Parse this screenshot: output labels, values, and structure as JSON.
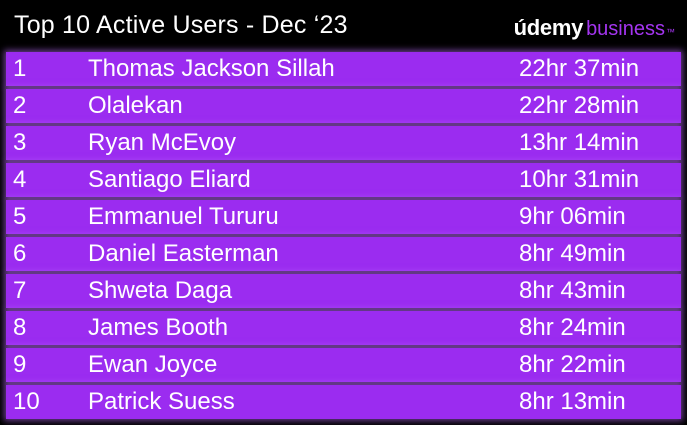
{
  "header": {
    "title": "Top 10 Active Users - Dec ‘23",
    "brand_logo": "údemy",
    "brand_suffix": "business",
    "brand_tm": "™"
  },
  "colors": {
    "background": "#000000",
    "row_fill": "#9b2cf0",
    "brand_accent": "#a435f0",
    "text": "#ffffff"
  },
  "rows": [
    {
      "rank": "1",
      "name": "Thomas Jackson Sillah",
      "time": "22hr 37min"
    },
    {
      "rank": "2",
      "name": "Olalekan",
      "time": "22hr 28min"
    },
    {
      "rank": "3",
      "name": "Ryan McEvoy",
      "time": "13hr 14min"
    },
    {
      "rank": "4",
      "name": "Santiago Eliard",
      "time": "10hr 31min"
    },
    {
      "rank": "5",
      "name": "Emmanuel Tururu",
      "time": "9hr 06min"
    },
    {
      "rank": "6",
      "name": "Daniel Easterman",
      "time": "8hr 49min"
    },
    {
      "rank": "7",
      "name": "Shweta Daga",
      "time": "8hr 43min"
    },
    {
      "rank": "8",
      "name": "James Booth",
      "time": "8hr 24min"
    },
    {
      "rank": "9",
      "name": "Ewan Joyce",
      "time": "8hr 22min"
    },
    {
      "rank": "10",
      "name": "Patrick Suess",
      "time": "8hr 13min"
    }
  ]
}
